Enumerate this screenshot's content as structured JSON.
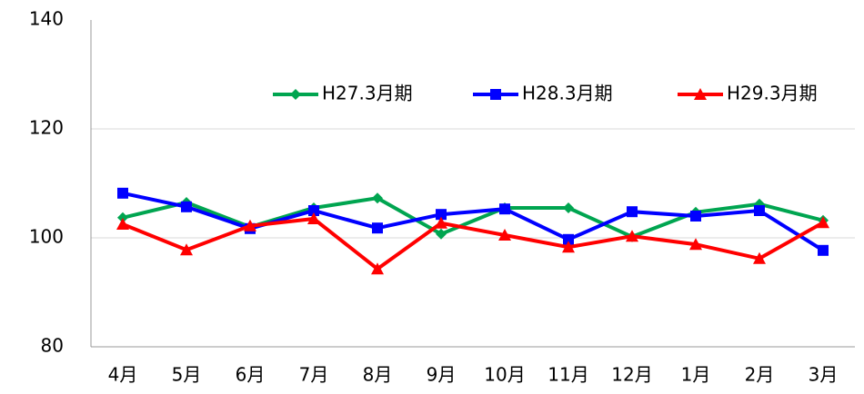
{
  "chart_data": {
    "type": "line",
    "categories": [
      "4月",
      "5月",
      "6月",
      "7月",
      "8月",
      "9月",
      "10月",
      "11月",
      "12月",
      "1月",
      "2月",
      "3月"
    ],
    "series": [
      {
        "name": "H27.3月期",
        "color": "#00a550",
        "marker": "diamond",
        "values": [
          103.7,
          106.5,
          102,
          105.5,
          107.3,
          100.7,
          105.5,
          105.5,
          100.2,
          104.7,
          106.2,
          103.2
        ]
      },
      {
        "name": "H28.3月期",
        "color": "#0000ff",
        "marker": "square",
        "values": [
          108.2,
          105.7,
          101.7,
          105,
          101.8,
          104.3,
          105.3,
          99.7,
          104.8,
          104,
          105,
          97.7
        ]
      },
      {
        "name": "H29.3月期",
        "color": "#ff0000",
        "marker": "triangle",
        "values": [
          102.5,
          97.8,
          102.2,
          103.5,
          94.3,
          102.7,
          100.5,
          98.3,
          100.3,
          98.8,
          96.2,
          102.8
        ]
      }
    ],
    "ylim": [
      80,
      140
    ],
    "yticks": [
      80,
      100,
      120,
      140
    ],
    "grid": true,
    "legend": "top-right"
  }
}
